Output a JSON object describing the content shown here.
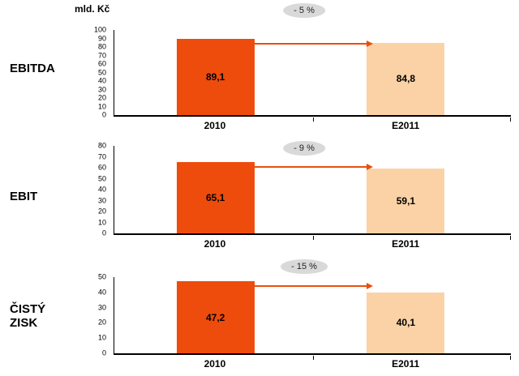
{
  "unit_label": "mld. Kč",
  "colors": {
    "bar_2010": "#ee4c0c",
    "bar_e2011": "#fad2a6",
    "arrow": "#e8500f",
    "badge_bg": "#d9d9d9",
    "axis": "#000000"
  },
  "chart_data": [
    {
      "type": "bar",
      "title": "EBITDA",
      "categories": [
        "2010",
        "E2011"
      ],
      "values": [
        89.1,
        84.8
      ],
      "value_labels": [
        "89,1",
        "84,8"
      ],
      "annotation": "- 5 %",
      "xlabel": "",
      "ylabel": "mld. Kč",
      "ylim": [
        0,
        100
      ],
      "ytick_step": 10,
      "grid": false,
      "legend": "none"
    },
    {
      "type": "bar",
      "title": "EBIT",
      "categories": [
        "2010",
        "E2011"
      ],
      "values": [
        65.1,
        59.1
      ],
      "value_labels": [
        "65,1",
        "59,1"
      ],
      "annotation": "- 9 %",
      "xlabel": "",
      "ylabel": "",
      "ylim": [
        0,
        80
      ],
      "ytick_step": 10,
      "grid": false,
      "legend": "none"
    },
    {
      "type": "bar",
      "title": "ČISTÝ ZISK",
      "categories": [
        "2010",
        "E2011"
      ],
      "values": [
        47.2,
        40.1
      ],
      "value_labels": [
        "47,2",
        "40,1"
      ],
      "annotation": "- 15 %",
      "xlabel": "",
      "ylabel": "",
      "ylim": [
        0,
        50
      ],
      "ytick_step": 10,
      "grid": false,
      "legend": "none"
    }
  ]
}
